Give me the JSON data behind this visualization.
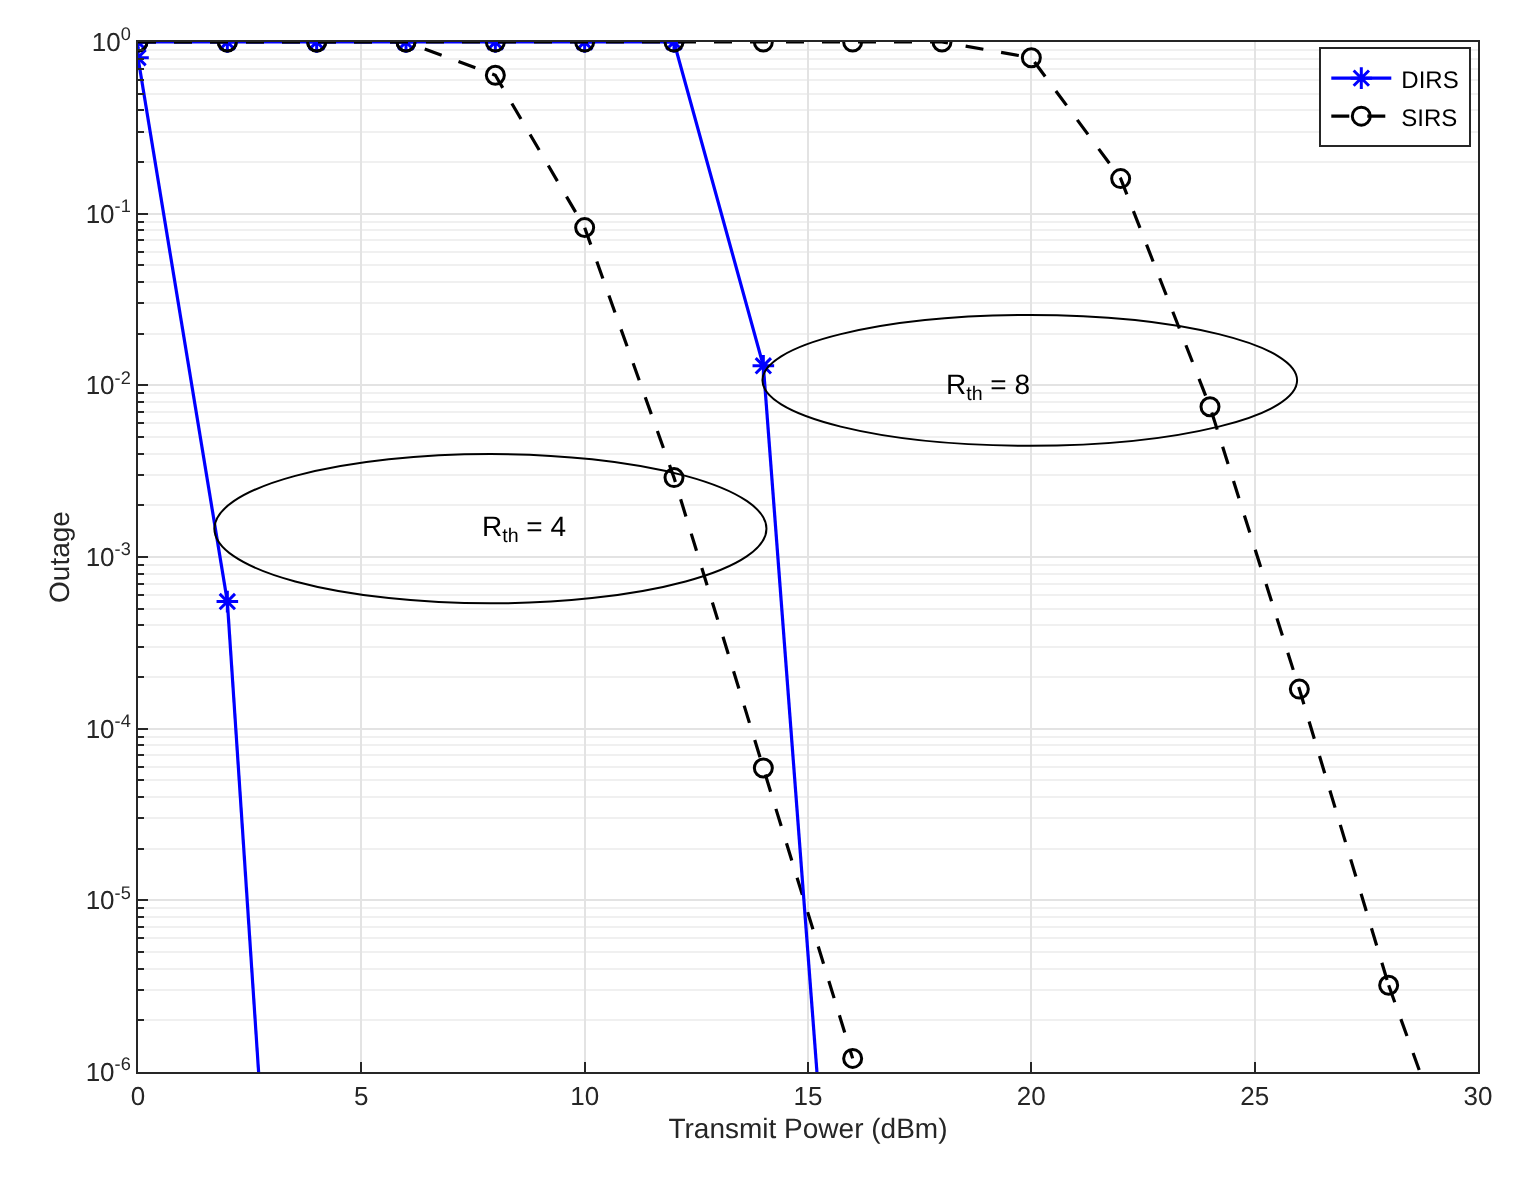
{
  "chart_data": {
    "type": "line",
    "xlabel": "Transmit Power (dBm)",
    "ylabel": "Outage",
    "series": [
      {
        "name": "DIRS",
        "color": "#0000ff",
        "marker": "cross",
        "line_style": "solid",
        "x": [
          0,
          2
        ],
        "values": [
          0.81,
          0.00055
        ]
      },
      {
        "color": "#0000ff",
        "type": "line",
        "marker": "none",
        "line_style": "solid",
        "x": [
          2,
          2.7
        ],
        "values": [
          0.00055,
          1e-06
        ]
      },
      {
        "name": "SIRS",
        "color": "#000000",
        "marker": "circle",
        "line_style": "dashed",
        "x": [
          0,
          2,
          4,
          6,
          8,
          10,
          12,
          14,
          16
        ],
        "values": [
          1,
          1,
          1,
          1,
          0.64,
          0.083,
          0.0029,
          5.9e-05,
          1.2e-06
        ]
      },
      {
        "color": "#0000ff",
        "marker": "cross",
        "line_style": "solid",
        "x": [
          0,
          2,
          4,
          6,
          8,
          10,
          12,
          14
        ],
        "values": [
          1,
          1,
          1,
          1,
          1,
          1,
          1,
          0.013
        ]
      },
      {
        "color": "#0000ff",
        "type": "line",
        "marker": "none",
        "line_style": "solid",
        "x": [
          14,
          15.2
        ],
        "values": [
          0.013,
          1e-06
        ]
      },
      {
        "color": "#000000",
        "marker": "circle",
        "line_style": "dashed",
        "x": [
          0,
          2,
          4,
          6,
          8,
          10,
          12,
          14,
          16,
          18,
          20,
          22,
          24,
          26,
          28
        ],
        "values": [
          1,
          1,
          1,
          1,
          1,
          1,
          1,
          1,
          1,
          1,
          0.81,
          0.16,
          0.0075,
          0.00017,
          3.2e-06
        ]
      },
      {
        "color": "#000000",
        "type": "line",
        "marker": "none",
        "line_style": "dashed",
        "x": [
          28,
          28.7
        ],
        "values": [
          3.2e-06,
          1e-06
        ]
      }
    ],
    "xlim": [
      0,
      30
    ],
    "xticks": [
      0,
      5,
      10,
      15,
      20,
      25,
      30
    ],
    "log": "y",
    "ylim": [
      1e-06,
      1
    ],
    "yticks": [
      {
        "value": 1e-06,
        "label": "10$^{-6}$"
      },
      {
        "value": 1e-05,
        "label": "10$^{-5}$"
      },
      {
        "value": 0.0001,
        "label": "10$^{-4}$"
      },
      {
        "value": 0.001,
        "label": "10$^{-3}$"
      },
      {
        "value": 0.01,
        "label": "10$^{-2}$"
      },
      {
        "value": 0.1,
        "label": "10$^{-1}$"
      },
      {
        "value": 1,
        "label": "10$^{0}$"
      }
    ],
    "grid": true,
    "legend": "top right",
    "annotations": [
      "R$_{th}$ = 4",
      "R$_{th}$ = 8"
    ]
  }
}
